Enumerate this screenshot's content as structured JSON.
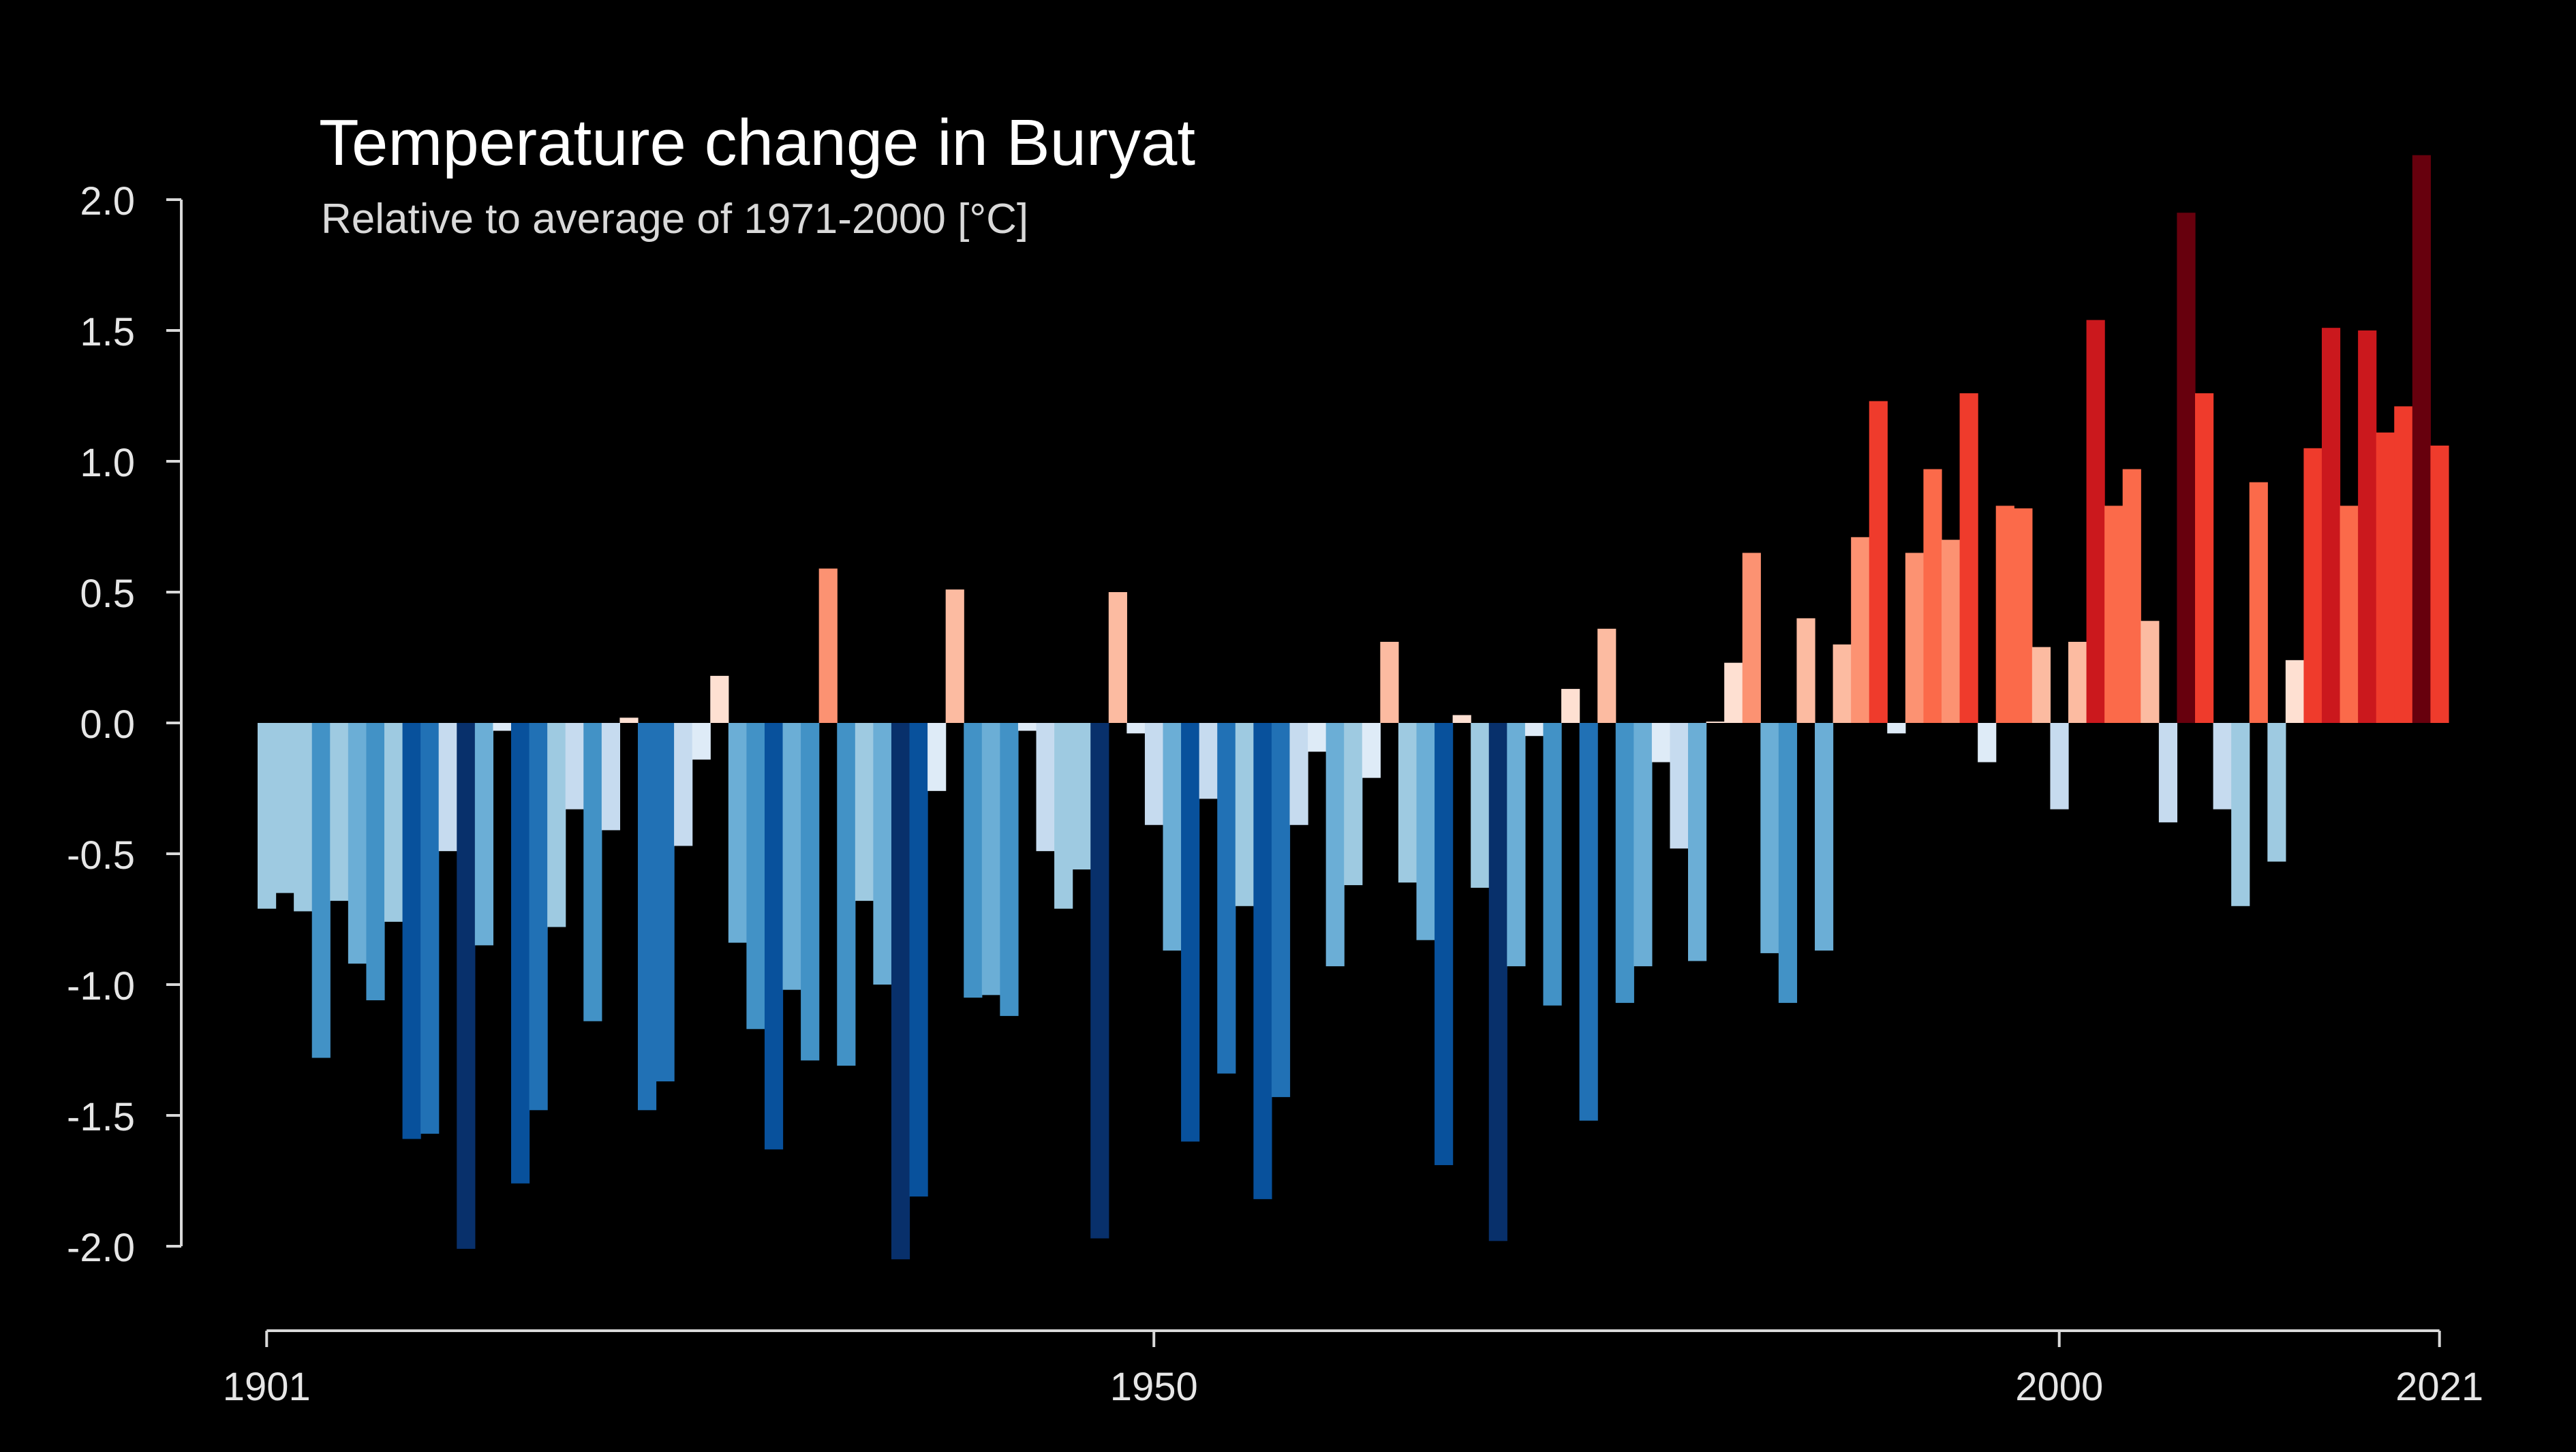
{
  "chart_data": {
    "type": "bar",
    "title": "Temperature change in Buryat",
    "subtitle": "Relative to average of 1971-2000  [°C]",
    "xlabel": "",
    "ylabel": "",
    "ylim": [
      -2.0,
      2.0
    ],
    "xlim": [
      1901,
      2021
    ],
    "y_ticks": [
      "2.0",
      "1.5",
      "1.0",
      "0.5",
      "0.0",
      "-0.5",
      "-1.0",
      "-1.5",
      "-2.0"
    ],
    "y_tick_values": [
      2.0,
      1.5,
      1.0,
      0.5,
      0.0,
      -0.5,
      -1.0,
      -1.5,
      -2.0
    ],
    "x_ticks": [
      "1901",
      "1950",
      "2000",
      "2021"
    ],
    "x_tick_values": [
      1901,
      1950,
      2000,
      2021
    ],
    "grid": false,
    "legend": "none",
    "first_year": 1901,
    "color_scale": {
      "negative": [
        "#deebf7",
        "#c6dbef",
        "#9ecae1",
        "#6baed6",
        "#4292c6",
        "#2171b5",
        "#08519c",
        "#08306b"
      ],
      "positive": [
        "#fee0d2",
        "#fcbba1",
        "#fc9272",
        "#fb6a4a",
        "#ef3b2c",
        "#cb181d",
        "#a50f15",
        "#67000d"
      ]
    },
    "values": [
      -0.71,
      -0.65,
      -0.72,
      -1.28,
      -0.68,
      -0.92,
      -1.06,
      -0.76,
      -1.59,
      -1.57,
      -0.49,
      -2.01,
      -0.85,
      -0.03,
      -1.76,
      -1.48,
      -0.78,
      -0.33,
      -1.14,
      -0.41,
      0.02,
      -1.48,
      -1.37,
      -0.47,
      -0.14,
      0.18,
      -0.84,
      -1.17,
      -1.63,
      -1.02,
      -1.29,
      0.59,
      -1.31,
      -0.68,
      -1.0,
      -2.05,
      -1.81,
      -0.26,
      0.51,
      -1.05,
      -1.04,
      -1.12,
      -0.03,
      -0.49,
      -0.71,
      -0.56,
      -1.97,
      0.5,
      -0.04,
      -0.39,
      -0.87,
      -1.6,
      -0.29,
      -1.34,
      -0.7,
      -1.82,
      -1.43,
      -0.39,
      -0.11,
      -0.93,
      -0.62,
      -0.21,
      0.31,
      -0.61,
      -0.83,
      -1.69,
      0.03,
      -0.63,
      -1.98,
      -0.93,
      -0.05,
      -1.08,
      0.13,
      -1.52,
      0.36,
      -1.07,
      -0.93,
      -0.15,
      -0.48,
      -0.91,
      0.0,
      0.23,
      0.65,
      -0.88,
      -1.07,
      0.4,
      -0.87,
      0.3,
      0.71,
      1.23,
      -0.04,
      0.65,
      0.97,
      0.7,
      1.26,
      -0.15,
      0.83,
      0.82,
      0.29,
      -0.33,
      0.31,
      1.54,
      0.83,
      0.97,
      0.39,
      -0.38,
      1.95,
      1.26,
      -0.33,
      -0.7,
      0.92,
      -0.53,
      0.24,
      1.05,
      1.51,
      0.83,
      1.5,
      1.11,
      1.21,
      2.17,
      1.06
    ]
  }
}
